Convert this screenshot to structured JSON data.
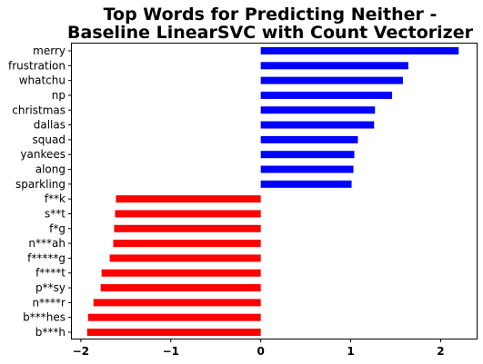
{
  "chart_data": {
    "type": "bar",
    "orientation": "horizontal",
    "title": "Top Words for Predicting Neither -\nBaseline LinearSVC with Count Vectorizer",
    "xlabel": "",
    "ylabel": "",
    "xlim": [
      -2.1,
      2.4
    ],
    "xticks": [
      -2,
      -1,
      0,
      1,
      2
    ],
    "xtick_labels": [
      "−2",
      "−1",
      "0",
      "1",
      "2"
    ],
    "grid": false,
    "categories": [
      "merry",
      "frustration",
      "whatchu",
      "np",
      "christmas",
      "dallas",
      "squad",
      "yankees",
      "along",
      "sparkling",
      "f**k",
      "s**t",
      "f*g",
      "n***ah",
      "f*****g",
      "f****t",
      "p**sy",
      "n****r",
      "b***hes",
      "b***h"
    ],
    "values": [
      2.2,
      1.64,
      1.58,
      1.46,
      1.27,
      1.26,
      1.08,
      1.04,
      1.03,
      1.01,
      -1.61,
      -1.62,
      -1.63,
      -1.64,
      -1.68,
      -1.77,
      -1.78,
      -1.86,
      -1.92,
      -1.93
    ],
    "colors": {
      "positive": "#0000ff",
      "negative": "#ff0000"
    }
  }
}
